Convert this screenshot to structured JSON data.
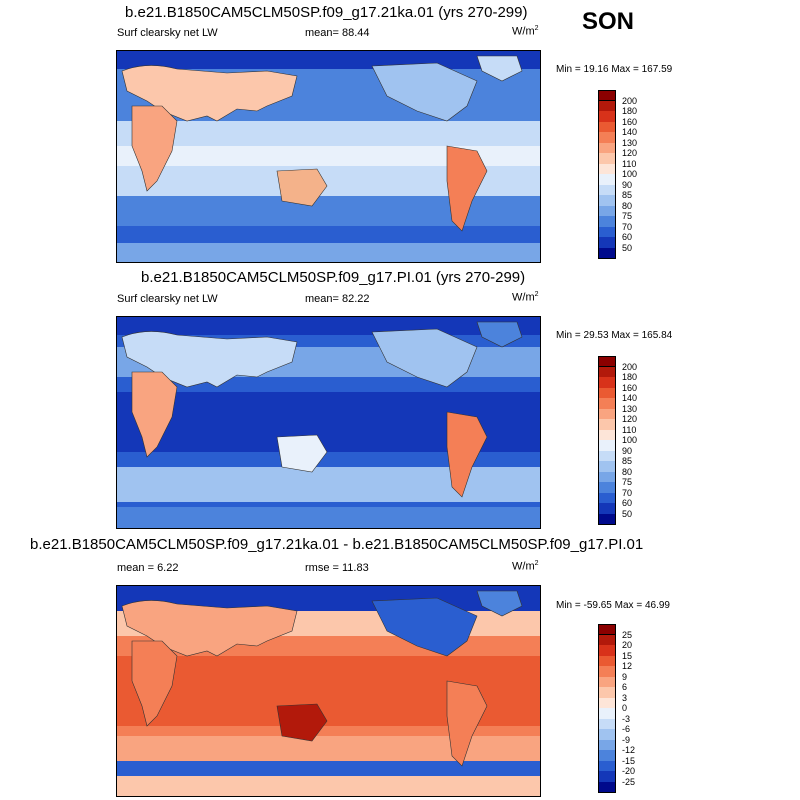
{
  "season": "SON",
  "panels": [
    {
      "title": "b.e21.B1850CAM5CLM50SP.f09_g17.21ka.01 (yrs 270-299)",
      "variable": "Surf clearsky net LW",
      "stat_label": "mean=",
      "stat_value": "88.44",
      "units": "W/m",
      "units_sup": "2",
      "min_label": "Min =",
      "min_value": "19.16",
      "max_label": "Max =",
      "max_value": "167.59",
      "colorbar_ticks": [
        "200",
        "180",
        "160",
        "140",
        "130",
        "120",
        "110",
        "100",
        "90",
        "85",
        "80",
        "75",
        "70",
        "60",
        "50"
      ],
      "colorbar_colors": [
        "#8b0000",
        "#b2190b",
        "#d8321a",
        "#ea5a32",
        "#f47f56",
        "#f9a480",
        "#fcc7ab",
        "#fde5d8",
        "#e9f1fb",
        "#c6dcf7",
        "#a0c3f0",
        "#78a6e7",
        "#4c83dc",
        "#2a5ed0",
        "#1437b8",
        "#000a8c"
      ]
    },
    {
      "title": "b.e21.B1850CAM5CLM50SP.f09_g17.PI.01 (yrs 270-299)",
      "variable": "Surf clearsky net LW",
      "stat_label": "mean=",
      "stat_value": "82.22",
      "units": "W/m",
      "units_sup": "2",
      "min_label": "Min =",
      "min_value": "29.53",
      "max_label": "Max =",
      "max_value": "165.84",
      "colorbar_ticks": [
        "200",
        "180",
        "160",
        "140",
        "130",
        "120",
        "110",
        "100",
        "90",
        "85",
        "80",
        "75",
        "70",
        "60",
        "50"
      ],
      "colorbar_colors": [
        "#8b0000",
        "#b2190b",
        "#d8321a",
        "#ea5a32",
        "#f47f56",
        "#f9a480",
        "#fcc7ab",
        "#fde5d8",
        "#e9f1fb",
        "#c6dcf7",
        "#a0c3f0",
        "#78a6e7",
        "#4c83dc",
        "#2a5ed0",
        "#1437b8",
        "#000a8c"
      ]
    },
    {
      "title": "b.e21.B1850CAM5CLM50SP.f09_g17.21ka.01 - b.e21.B1850CAM5CLM50SP.f09_g17.PI.01",
      "variable": "",
      "stat_label": "mean =",
      "stat_value": "6.22",
      "stat2_label": "rmse =",
      "stat2_value": "11.83",
      "units": "W/m",
      "units_sup": "2",
      "min_label": "Min =",
      "min_value": "-59.65",
      "max_label": "Max =",
      "max_value": "46.99",
      "colorbar_ticks": [
        "25",
        "20",
        "15",
        "12",
        "9",
        "6",
        "3",
        "0",
        "-3",
        "-6",
        "-9",
        "-12",
        "-15",
        "-20",
        "-25"
      ],
      "colorbar_colors": [
        "#8b0000",
        "#b2190b",
        "#d8321a",
        "#ea5a32",
        "#f47f56",
        "#f9a480",
        "#fcc7ab",
        "#fde5d8",
        "#e9f1fb",
        "#c6dcf7",
        "#a0c3f0",
        "#78a6e7",
        "#4c83dc",
        "#2a5ed0",
        "#1437b8",
        "#000a8c"
      ]
    }
  ]
}
